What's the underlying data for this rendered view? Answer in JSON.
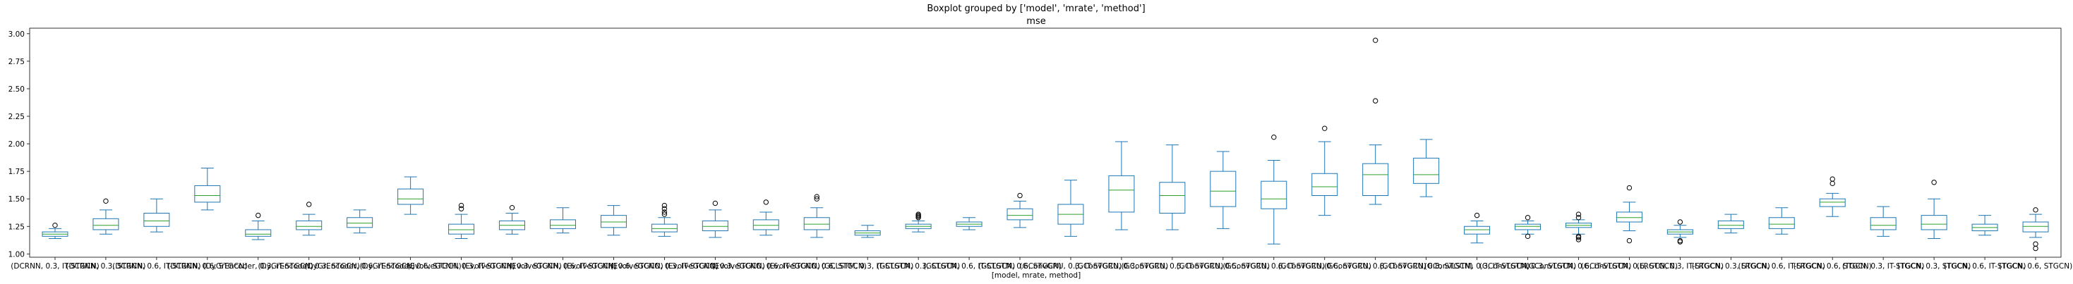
{
  "chart_data": {
    "type": "box",
    "suptitle": "Boxplot grouped by ['model', 'mrate', 'method']",
    "title": "mse",
    "xlabel": "[model, mrate, method]",
    "ylabel": "",
    "ylim": [
      0.97,
      3.05
    ],
    "yticks": [
      1.0,
      1.25,
      1.5,
      1.75,
      2.0,
      2.25,
      2.5,
      2.75,
      3.0
    ],
    "ytick_labels": [
      "1.00",
      "1.25",
      "1.50",
      "1.75",
      "2.00",
      "2.25",
      "2.50",
      "2.75",
      "3.00"
    ],
    "grid": false,
    "colors": {
      "box": "#1f77b4",
      "median": "#2ca02c",
      "flier": "#000000",
      "axis": "#000000"
    },
    "boxes": [
      {
        "label": "(DCRNN, 0.3, IT-STGCN)",
        "whislo": 1.14,
        "q1": 1.16,
        "med": 1.18,
        "q3": 1.2,
        "whishi": 1.23,
        "fliers": [
          1.26
        ]
      },
      {
        "label": "(DCRNN, 0.3, STGCN)",
        "whislo": 1.18,
        "q1": 1.22,
        "med": 1.26,
        "q3": 1.32,
        "whishi": 1.4,
        "fliers": [
          1.48
        ]
      },
      {
        "label": "(DCRNN, 0.6, IT-STGCN)",
        "whislo": 1.2,
        "q1": 1.25,
        "med": 1.3,
        "q3": 1.37,
        "whishi": 1.5,
        "fliers": []
      },
      {
        "label": "(DCRNN, 0.6, STGCN)",
        "whislo": 1.4,
        "q1": 1.47,
        "med": 1.53,
        "q3": 1.62,
        "whishi": 1.78,
        "fliers": []
      },
      {
        "label": "(DyGrEncoder, 0.3, IT-STGCN)",
        "whislo": 1.13,
        "q1": 1.16,
        "med": 1.18,
        "q3": 1.22,
        "whishi": 1.3,
        "fliers": [
          1.35
        ]
      },
      {
        "label": "(DyGrEncoder, 0.3, STGCN)",
        "whislo": 1.17,
        "q1": 1.22,
        "med": 1.25,
        "q3": 1.3,
        "whishi": 1.36,
        "fliers": [
          1.45
        ]
      },
      {
        "label": "(DyGrEncoder, 0.6, IT-STGCN)",
        "whislo": 1.19,
        "q1": 1.24,
        "med": 1.28,
        "q3": 1.33,
        "whishi": 1.4,
        "fliers": []
      },
      {
        "label": "(DyGrEncoder, 0.6, STGCN)",
        "whislo": 1.36,
        "q1": 1.45,
        "med": 1.5,
        "q3": 1.59,
        "whishi": 1.7,
        "fliers": []
      },
      {
        "label": "(EvolveGCNH, 0.3, IT-STGCN)",
        "whislo": 1.14,
        "q1": 1.18,
        "med": 1.22,
        "q3": 1.27,
        "whishi": 1.36,
        "fliers": [
          1.41,
          1.44
        ]
      },
      {
        "label": "(EvolveGCNH, 0.3, STGCN)",
        "whislo": 1.18,
        "q1": 1.22,
        "med": 1.26,
        "q3": 1.3,
        "whishi": 1.37,
        "fliers": [
          1.42
        ]
      },
      {
        "label": "(EvolveGCNH, 0.6, IT-STGCN)",
        "whislo": 1.19,
        "q1": 1.23,
        "med": 1.26,
        "q3": 1.31,
        "whishi": 1.42,
        "fliers": []
      },
      {
        "label": "(EvolveGCNH, 0.6, STGCN)",
        "whislo": 1.17,
        "q1": 1.24,
        "med": 1.29,
        "q3": 1.35,
        "whishi": 1.44,
        "fliers": []
      },
      {
        "label": "(EvolveGCNO, 0.3, IT-STGCN)",
        "whislo": 1.16,
        "q1": 1.2,
        "med": 1.23,
        "q3": 1.27,
        "whishi": 1.33,
        "fliers": [
          1.36,
          1.38,
          1.41,
          1.44
        ]
      },
      {
        "label": "(EvolveGCNO, 0.3, STGCN)",
        "whislo": 1.15,
        "q1": 1.21,
        "med": 1.25,
        "q3": 1.3,
        "whishi": 1.4,
        "fliers": [
          1.46
        ]
      },
      {
        "label": "(EvolveGCNO, 0.6, IT-STGCN)",
        "whislo": 1.17,
        "q1": 1.22,
        "med": 1.26,
        "q3": 1.31,
        "whishi": 1.38,
        "fliers": [
          1.47
        ]
      },
      {
        "label": "(EvolveGCNO, 0.6, STGCN)",
        "whislo": 1.15,
        "q1": 1.22,
        "med": 1.27,
        "q3": 1.33,
        "whishi": 1.42,
        "fliers": [
          1.5,
          1.52
        ]
      },
      {
        "label": "(GCLSTM, 0.3, IT-STGCN)",
        "whislo": 1.15,
        "q1": 1.17,
        "med": 1.19,
        "q3": 1.21,
        "whishi": 1.26,
        "fliers": []
      },
      {
        "label": "(GCLSTM, 0.3, STGCN)",
        "whislo": 1.2,
        "q1": 1.23,
        "med": 1.25,
        "q3": 1.27,
        "whishi": 1.3,
        "fliers": [
          1.33,
          1.34,
          1.35,
          1.36
        ]
      },
      {
        "label": "(GCLSTM, 0.6, IT-STGCN)",
        "whislo": 1.22,
        "q1": 1.25,
        "med": 1.27,
        "q3": 1.29,
        "whishi": 1.33,
        "fliers": []
      },
      {
        "label": "(GCLSTM, 0.6, STGCN)",
        "whislo": 1.24,
        "q1": 1.31,
        "med": 1.35,
        "q3": 1.41,
        "whishi": 1.48,
        "fliers": [
          1.53
        ]
      },
      {
        "label": "(GConvGRU, 0.3, IT-STGCN)",
        "whislo": 1.16,
        "q1": 1.27,
        "med": 1.36,
        "q3": 1.45,
        "whishi": 1.67,
        "fliers": []
      },
      {
        "label": "(GConvGRU, 0.3, STGCN)",
        "whislo": 1.22,
        "q1": 1.38,
        "med": 1.58,
        "q3": 1.71,
        "whishi": 2.02,
        "fliers": []
      },
      {
        "label": "(GConvGRU, 0.5, IT-STGCN)",
        "whislo": 1.22,
        "q1": 1.37,
        "med": 1.53,
        "q3": 1.65,
        "whishi": 1.99,
        "fliers": []
      },
      {
        "label": "(GConvGRU, 0.5, STGCN)",
        "whislo": 1.23,
        "q1": 1.43,
        "med": 1.57,
        "q3": 1.75,
        "whishi": 1.93,
        "fliers": []
      },
      {
        "label": "(GConvGRU, 0.6, IT-STGCN)",
        "whislo": 1.09,
        "q1": 1.41,
        "med": 1.5,
        "q3": 1.66,
        "whishi": 1.85,
        "fliers": [
          2.06
        ]
      },
      {
        "label": "(GConvGRU, 0.6, STGCN)",
        "whislo": 1.35,
        "q1": 1.53,
        "med": 1.61,
        "q3": 1.73,
        "whishi": 2.02,
        "fliers": [
          2.14
        ]
      },
      {
        "label": "(GConvGRU, 0.8, IT-STGCN)",
        "whislo": 1.45,
        "q1": 1.53,
        "med": 1.72,
        "q3": 1.82,
        "whishi": 1.99,
        "fliers": [
          2.39,
          2.94
        ]
      },
      {
        "label": "(GConvGRU, 0.8, STGCN)",
        "whislo": 1.52,
        "q1": 1.64,
        "med": 1.72,
        "q3": 1.87,
        "whishi": 2.04,
        "fliers": []
      },
      {
        "label": "(GConvLSTM, 0.3, IT-STGCN)",
        "whislo": 1.1,
        "q1": 1.18,
        "med": 1.22,
        "q3": 1.25,
        "whishi": 1.3,
        "fliers": [
          1.35
        ]
      },
      {
        "label": "(GConvLSTM, 0.3, STGCN)",
        "whislo": 1.18,
        "q1": 1.22,
        "med": 1.25,
        "q3": 1.27,
        "whishi": 1.3,
        "fliers": [
          1.16,
          1.33
        ]
      },
      {
        "label": "(GConvLSTM, 0.6, IT-STGCN)",
        "whislo": 1.18,
        "q1": 1.24,
        "med": 1.26,
        "q3": 1.28,
        "whishi": 1.31,
        "fliers": [
          1.13,
          1.15,
          1.16,
          1.33,
          1.36
        ]
      },
      {
        "label": "(GConvLSTM, 0.6, STGCN)",
        "whislo": 1.21,
        "q1": 1.29,
        "med": 1.33,
        "q3": 1.38,
        "whishi": 1.47,
        "fliers": [
          1.12,
          1.6
        ]
      },
      {
        "label": "(LRGCN, 0.3, IT-STGCN)",
        "whislo": 1.15,
        "q1": 1.18,
        "med": 1.2,
        "q3": 1.22,
        "whishi": 1.26,
        "fliers": [
          1.11,
          1.12,
          1.29
        ]
      },
      {
        "label": "(LRGCN, 0.3, STGCN)",
        "whislo": 1.19,
        "q1": 1.23,
        "med": 1.26,
        "q3": 1.3,
        "whishi": 1.36,
        "fliers": []
      },
      {
        "label": "(LRGCN, 0.6, IT-STGCN)",
        "whislo": 1.18,
        "q1": 1.23,
        "med": 1.27,
        "q3": 1.33,
        "whishi": 1.42,
        "fliers": []
      },
      {
        "label": "(LRGCN, 0.6, STGCN)",
        "whislo": 1.34,
        "q1": 1.43,
        "med": 1.47,
        "q3": 1.5,
        "whishi": 1.55,
        "fliers": [
          1.64,
          1.68
        ]
      },
      {
        "label": "(TGCN, 0.3, IT-STGCN)",
        "whislo": 1.16,
        "q1": 1.22,
        "med": 1.26,
        "q3": 1.33,
        "whishi": 1.43,
        "fliers": []
      },
      {
        "label": "(TGCN, 0.3, STGCN)",
        "whislo": 1.14,
        "q1": 1.22,
        "med": 1.27,
        "q3": 1.35,
        "whishi": 1.5,
        "fliers": [
          1.65
        ]
      },
      {
        "label": "(TGCN, 0.6, IT-STGCN)",
        "whislo": 1.17,
        "q1": 1.21,
        "med": 1.24,
        "q3": 1.27,
        "whishi": 1.35,
        "fliers": []
      },
      {
        "label": "(TGCN, 0.6, STGCN)",
        "whislo": 1.15,
        "q1": 1.2,
        "med": 1.25,
        "q3": 1.29,
        "whishi": 1.36,
        "fliers": [
          1.05,
          1.09,
          1.4
        ]
      }
    ]
  }
}
